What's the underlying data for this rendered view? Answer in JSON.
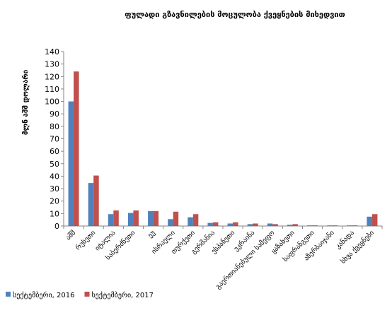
{
  "chart_data": {
    "type": "bar",
    "title": "ფულადი გზავნილების მოცულობა ქვეყნების მიხედვით",
    "ylabel": "მლნ აშშ დოლარი",
    "xlabel": "",
    "ylim": [
      0,
      140
    ],
    "yticks": [
      0,
      10,
      20,
      30,
      40,
      50,
      60,
      70,
      80,
      90,
      100,
      110,
      120,
      130,
      140
    ],
    "grid": false,
    "legend_position": "bottom-left",
    "categories": [
      "აშშ",
      "რუსეთი",
      "იტალია",
      "საბერძნეთი",
      "ეუ",
      "ისრაელი",
      "თურქეთი",
      "გერმანია",
      "ესპანეთი",
      "უკრაინა",
      "გაერთიანებული სამეფო",
      "ყაზახეთი",
      "საფრანგეთი",
      "აზერბაიჯანი",
      "კანადა",
      "სხვა ქვეყნები"
    ],
    "series": [
      {
        "name": "სექტემბერი, 2016",
        "color": "#4f81bd",
        "values": [
          100,
          34.5,
          9.5,
          10.5,
          12,
          5.5,
          7,
          2.5,
          2,
          1.5,
          2,
          1,
          0.5,
          0.5,
          0.5,
          7.5
        ]
      },
      {
        "name": "სექტემბერი, 2017",
        "color": "#c0504d",
        "values": [
          124,
          40.5,
          12.5,
          12.5,
          12,
          11.5,
          9.5,
          3,
          3,
          2,
          1.5,
          1.5,
          0.5,
          0.5,
          0.5,
          9.5
        ]
      }
    ]
  }
}
